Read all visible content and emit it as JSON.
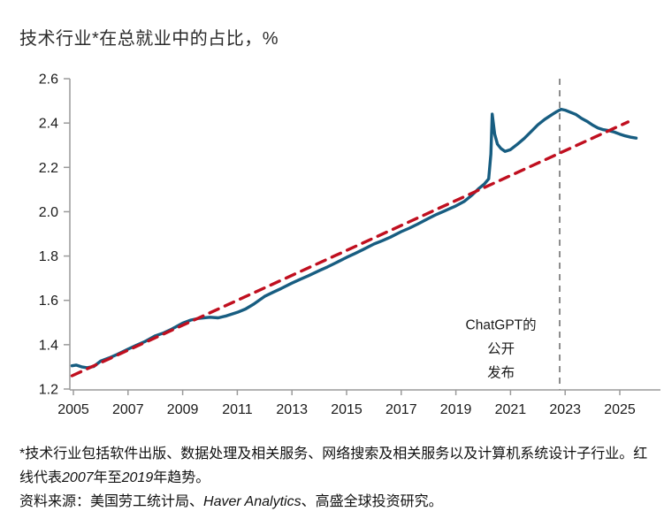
{
  "title": {
    "text": "技术行业*在总就业中的占比，%"
  },
  "colors": {
    "employment_line": "#175d81",
    "trend_line": "#c00f1f",
    "event_line": "#8c8c8c",
    "axis": "#9a9a9a",
    "tick_text": "#1a1a1a"
  },
  "chart_data": {
    "type": "line",
    "title": "技术行业*在总就业中的占比，%",
    "xlabel": "",
    "ylabel": "%",
    "ylim": [
      1.2,
      2.6
    ],
    "xlim": [
      2004.85,
      2026.5
    ],
    "grid": false,
    "legend": "none",
    "y_ticks": [
      "1.2",
      "1.4",
      "1.6",
      "1.8",
      "2.0",
      "2.2",
      "2.4",
      "2.6"
    ],
    "x_ticks": [
      2005,
      2007,
      2009,
      2011,
      2013,
      2015,
      2017,
      2019,
      2021,
      2023,
      2025
    ],
    "series": [
      {
        "name": "技术行业就业占比",
        "style": "solid",
        "color": "#175d81",
        "width": 3.4,
        "points": [
          [
            2004.95,
            1.305
          ],
          [
            2005.1,
            1.308
          ],
          [
            2005.3,
            1.3
          ],
          [
            2005.5,
            1.296
          ],
          [
            2005.75,
            1.302
          ],
          [
            2006.0,
            1.326
          ],
          [
            2006.3,
            1.34
          ],
          [
            2006.6,
            1.356
          ],
          [
            2007.0,
            1.38
          ],
          [
            2007.3,
            1.397
          ],
          [
            2007.6,
            1.413
          ],
          [
            2008.0,
            1.44
          ],
          [
            2008.3,
            1.453
          ],
          [
            2008.6,
            1.47
          ],
          [
            2009.0,
            1.497
          ],
          [
            2009.3,
            1.511
          ],
          [
            2009.6,
            1.519
          ],
          [
            2010.0,
            1.524
          ],
          [
            2010.3,
            1.521
          ],
          [
            2010.6,
            1.53
          ],
          [
            2011.0,
            1.546
          ],
          [
            2011.3,
            1.561
          ],
          [
            2011.6,
            1.583
          ],
          [
            2012.0,
            1.618
          ],
          [
            2012.3,
            1.636
          ],
          [
            2012.6,
            1.653
          ],
          [
            2013.0,
            1.678
          ],
          [
            2013.3,
            1.695
          ],
          [
            2013.6,
            1.711
          ],
          [
            2014.0,
            1.734
          ],
          [
            2014.3,
            1.751
          ],
          [
            2014.6,
            1.769
          ],
          [
            2015.0,
            1.794
          ],
          [
            2015.3,
            1.811
          ],
          [
            2015.6,
            1.829
          ],
          [
            2016.0,
            1.854
          ],
          [
            2016.3,
            1.869
          ],
          [
            2016.6,
            1.885
          ],
          [
            2017.0,
            1.91
          ],
          [
            2017.3,
            1.926
          ],
          [
            2017.6,
            1.944
          ],
          [
            2018.0,
            1.97
          ],
          [
            2018.3,
            1.988
          ],
          [
            2018.6,
            2.004
          ],
          [
            2019.0,
            2.026
          ],
          [
            2019.3,
            2.046
          ],
          [
            2019.6,
            2.076
          ],
          [
            2019.85,
            2.106
          ],
          [
            2020.05,
            2.126
          ],
          [
            2020.2,
            2.148
          ],
          [
            2020.28,
            2.26
          ],
          [
            2020.33,
            2.44
          ],
          [
            2020.42,
            2.35
          ],
          [
            2020.52,
            2.305
          ],
          [
            2020.65,
            2.285
          ],
          [
            2020.8,
            2.272
          ],
          [
            2021.0,
            2.28
          ],
          [
            2021.25,
            2.304
          ],
          [
            2021.5,
            2.33
          ],
          [
            2021.75,
            2.361
          ],
          [
            2022.0,
            2.392
          ],
          [
            2022.25,
            2.416
          ],
          [
            2022.5,
            2.437
          ],
          [
            2022.7,
            2.452
          ],
          [
            2022.85,
            2.462
          ],
          [
            2023.0,
            2.458
          ],
          [
            2023.2,
            2.448
          ],
          [
            2023.4,
            2.438
          ],
          [
            2023.6,
            2.421
          ],
          [
            2023.8,
            2.408
          ],
          [
            2024.0,
            2.391
          ],
          [
            2024.2,
            2.378
          ],
          [
            2024.4,
            2.37
          ],
          [
            2024.6,
            2.366
          ],
          [
            2024.8,
            2.359
          ],
          [
            2025.0,
            2.35
          ],
          [
            2025.2,
            2.342
          ],
          [
            2025.4,
            2.336
          ],
          [
            2025.6,
            2.332
          ]
        ]
      },
      {
        "name": "2007年至2019年趋势",
        "style": "dashed",
        "color": "#c00f1f",
        "width": 3.4,
        "points": [
          [
            2004.95,
            1.26
          ],
          [
            2025.3,
            2.405
          ]
        ]
      }
    ],
    "vline": {
      "x": 2022.8,
      "style": "dashed",
      "color": "#8c8c8c"
    },
    "annotation": {
      "lines": [
        "ChatGPT的",
        "公开",
        "发布"
      ],
      "anchor_year": 2020.65,
      "anchor_value": 1.47
    }
  },
  "footnote": {
    "part1": "*技术行业包括软件出版、数据处理及相关服务、网络搜索及相关服务以及计算机系统设计子行业。红线代表",
    "year_start": "2007",
    "part2": "年至",
    "year_end": "2019",
    "part3": "年趋势。"
  },
  "source": {
    "part1": "资料来源：美国劳工统计局、",
    "vendor": "Haver Analytics",
    "part2": "、高盛全球投资研究。"
  }
}
